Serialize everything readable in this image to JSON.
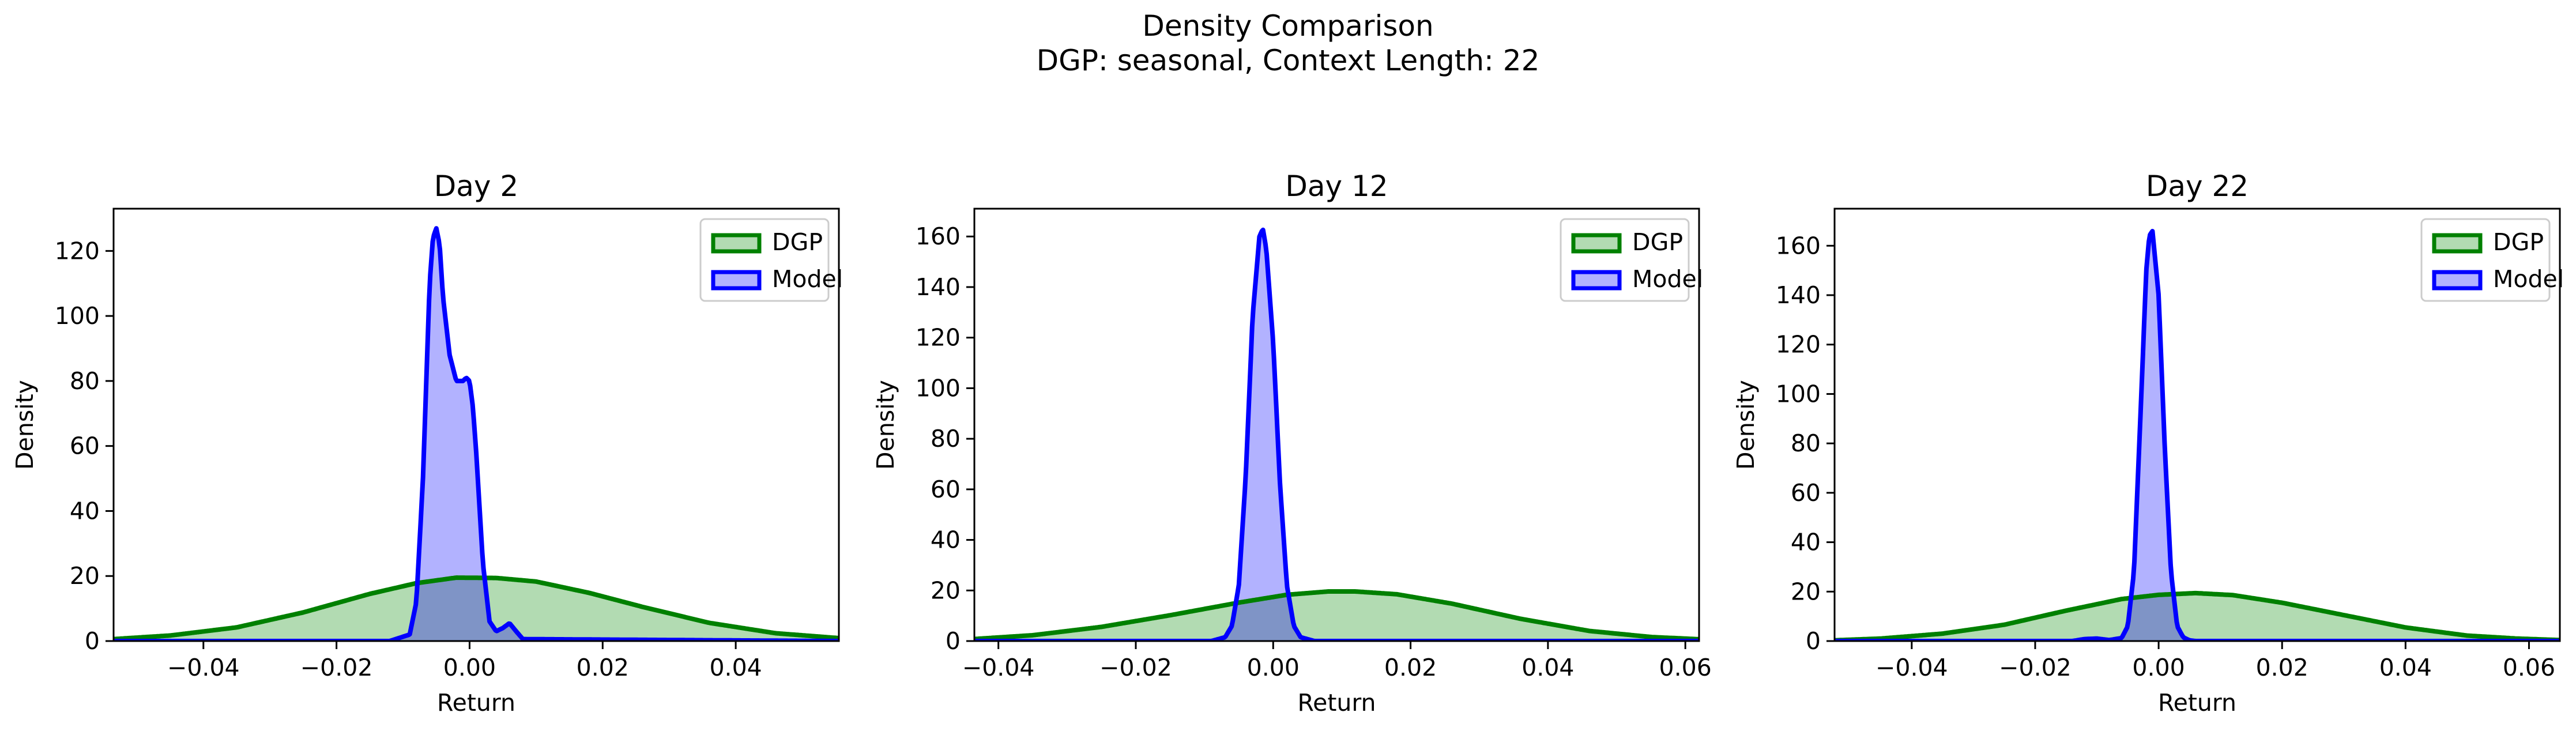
{
  "suptitle": {
    "line1": "Density Comparison",
    "line2": "DGP: seasonal, Context Length: 22"
  },
  "colors": {
    "dgp_line": "#008000",
    "dgp_fill": "#b2dbb2",
    "model_line": "#0000ff",
    "model_fill": "#b2b2ff",
    "overlap_fill": "#7f94c6",
    "axes": "#000000",
    "background": "#ffffff"
  },
  "chart_data": [
    {
      "type": "area",
      "title": "Day 2",
      "xlabel": "Return",
      "ylabel": "Density",
      "xlim": [
        -0.0535,
        0.0555
      ],
      "ylim": [
        0,
        133
      ],
      "xticks": [
        -0.04,
        -0.02,
        0.0,
        0.02,
        0.04
      ],
      "xtick_labels": [
        "−0.04",
        "−0.02",
        "0.00",
        "0.02",
        "0.04"
      ],
      "yticks": [
        0,
        20,
        40,
        60,
        80,
        100,
        120
      ],
      "ytick_labels": [
        "0",
        "20",
        "40",
        "60",
        "80",
        "100",
        "120"
      ],
      "legend": {
        "position": "upper right",
        "entries": [
          "DGP",
          "Model"
        ]
      },
      "grid": false,
      "series": [
        {
          "name": "DGP",
          "x": [
            -0.0535,
            -0.045,
            -0.035,
            -0.025,
            -0.015,
            -0.008,
            -0.002,
            0.004,
            0.01,
            0.018,
            0.026,
            0.036,
            0.046,
            0.0555
          ],
          "y": [
            0.6,
            1.7,
            4.2,
            8.8,
            14.5,
            17.8,
            19.5,
            19.4,
            18.3,
            14.8,
            10.5,
            5.6,
            2.4,
            0.9
          ]
        },
        {
          "name": "Model",
          "x": [
            -0.0535,
            -0.012,
            -0.009,
            -0.008,
            -0.007,
            -0.006,
            -0.0055,
            -0.005,
            -0.0045,
            -0.004,
            -0.003,
            -0.002,
            -0.001,
            -0.0005,
            0.0,
            0.0005,
            0.001,
            0.002,
            0.003,
            0.004,
            0.005,
            0.006,
            0.007,
            0.008,
            0.0555
          ],
          "y": [
            0,
            0,
            2,
            12,
            50,
            110,
            124,
            127,
            122,
            106,
            88,
            80,
            80,
            81,
            80,
            72,
            58,
            24,
            6,
            3,
            4,
            5.5,
            3,
            0.6,
            0
          ]
        }
      ]
    },
    {
      "type": "area",
      "title": "Day 12",
      "xlabel": "Return",
      "ylabel": "Density",
      "xlim": [
        -0.0435,
        0.062
      ],
      "ylim": [
        0,
        171
      ],
      "xticks": [
        -0.04,
        -0.02,
        0.0,
        0.02,
        0.04,
        0.06
      ],
      "xtick_labels": [
        "−0.04",
        "−0.02",
        "0.00",
        "0.02",
        "0.04",
        "0.06"
      ],
      "yticks": [
        0,
        20,
        40,
        60,
        80,
        100,
        120,
        140,
        160
      ],
      "ytick_labels": [
        "0",
        "20",
        "40",
        "60",
        "80",
        "100",
        "120",
        "140",
        "160"
      ],
      "legend": {
        "position": "upper right",
        "entries": [
          "DGP",
          "Model"
        ]
      },
      "grid": false,
      "series": [
        {
          "name": "DGP",
          "x": [
            -0.0435,
            -0.035,
            -0.025,
            -0.015,
            -0.005,
            0.002,
            0.008,
            0.012,
            0.018,
            0.026,
            0.036,
            0.046,
            0.055,
            0.062
          ],
          "y": [
            0.8,
            2.3,
            5.6,
            10.2,
            15.2,
            18.3,
            19.6,
            19.6,
            18.5,
            14.8,
            8.8,
            4.0,
            1.6,
            0.7
          ]
        },
        {
          "name": "Model",
          "x": [
            -0.0435,
            -0.009,
            -0.007,
            -0.006,
            -0.005,
            -0.004,
            -0.003,
            -0.002,
            -0.0015,
            -0.001,
            0.0,
            0.001,
            0.002,
            0.003,
            0.004,
            0.006,
            0.062
          ],
          "y": [
            0,
            0,
            1.5,
            6,
            22,
            65,
            128,
            160,
            163,
            155,
            118,
            62,
            22,
            6,
            1.5,
            0,
            0
          ]
        }
      ]
    },
    {
      "type": "area",
      "title": "Day 22",
      "xlabel": "Return",
      "ylabel": "Density",
      "xlim": [
        -0.0525,
        0.065
      ],
      "ylim": [
        0,
        175
      ],
      "xticks": [
        -0.04,
        -0.02,
        0.0,
        0.02,
        0.04,
        0.06
      ],
      "xtick_labels": [
        "−0.04",
        "−0.02",
        "0.00",
        "0.02",
        "0.04",
        "0.06"
      ],
      "yticks": [
        0,
        20,
        40,
        60,
        80,
        100,
        120,
        140,
        160
      ],
      "ytick_labels": [
        "0",
        "20",
        "40",
        "60",
        "80",
        "100",
        "120",
        "140",
        "160"
      ],
      "legend": {
        "position": "upper right",
        "entries": [
          "DGP",
          "Model"
        ]
      },
      "grid": false,
      "series": [
        {
          "name": "DGP",
          "x": [
            -0.0525,
            -0.045,
            -0.035,
            -0.025,
            -0.015,
            -0.006,
            0.0,
            0.006,
            0.012,
            0.02,
            0.03,
            0.04,
            0.05,
            0.058,
            0.065
          ],
          "y": [
            0.3,
            1.0,
            3.0,
            6.6,
            12.3,
            17.0,
            18.7,
            19.4,
            18.6,
            15.5,
            10.5,
            5.5,
            2.2,
            1.0,
            0.4
          ]
        },
        {
          "name": "Model",
          "x": [
            -0.0525,
            -0.014,
            -0.012,
            -0.01,
            -0.008,
            -0.006,
            -0.005,
            -0.004,
            -0.003,
            -0.002,
            -0.0015,
            -0.001,
            0.0,
            0.001,
            0.002,
            0.003,
            0.004,
            0.005,
            0.006,
            0.065
          ],
          "y": [
            0,
            0,
            0.8,
            1.0,
            0.4,
            1.2,
            6,
            28,
            88,
            150,
            164,
            166,
            140,
            78,
            28,
            6,
            1.5,
            0.3,
            0,
            0
          ]
        }
      ]
    }
  ]
}
